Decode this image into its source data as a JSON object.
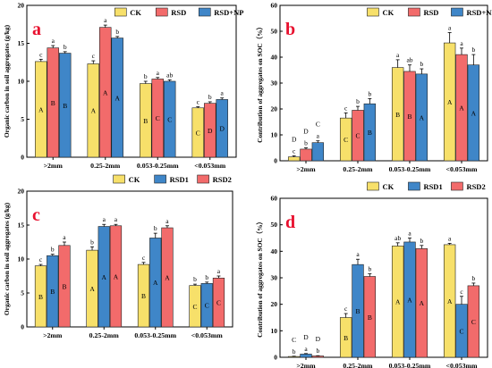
{
  "colors": {
    "yellow": "#f7e06a",
    "red": "#f26b6b",
    "blue": "#3f86c8"
  },
  "chart_data": [
    {
      "type": "bar",
      "panel_label": "a",
      "ylabel": "Organic carbon in soil aggregates (g/kg)",
      "ylim": [
        0,
        20
      ],
      "yticks": [
        "0",
        "5",
        "10",
        "15",
        "20"
      ],
      "categories": [
        ">2mm",
        "0.25-2mm",
        "0.053-0.25mm",
        "<0.053mm"
      ],
      "series": [
        {
          "name": "CK",
          "color": "#f7e06a",
          "values": [
            12.6,
            12.3,
            9.7,
            6.5
          ],
          "errors": [
            0.3,
            0.4,
            0.3,
            0.15
          ],
          "upper": [
            "c",
            "c",
            "b",
            "c"
          ],
          "lower": [
            "A",
            "A",
            "B",
            "C"
          ]
        },
        {
          "name": "RSD",
          "color": "#f26b6b",
          "values": [
            14.4,
            17.1,
            10.3,
            7.1
          ],
          "errors": [
            0.3,
            0.3,
            0.2,
            0.2
          ],
          "upper": [
            "a",
            "a",
            "a",
            "b"
          ],
          "lower": [
            "B",
            "A",
            "C",
            "D"
          ]
        },
        {
          "name": "RSD+NP",
          "color": "#3f86c8",
          "values": [
            13.7,
            15.7,
            10.0,
            7.6
          ],
          "errors": [
            0.2,
            0.2,
            0.2,
            0.2
          ],
          "upper": [
            "b",
            "b",
            "ab",
            "a"
          ],
          "lower": [
            "B",
            "A",
            "C",
            "D"
          ]
        }
      ]
    },
    {
      "type": "bar",
      "panel_label": "b",
      "ylabel": "Contribution of aggregates on SOC（%）",
      "ylim": [
        0,
        60
      ],
      "yticks": [
        "0",
        "10",
        "20",
        "30",
        "40",
        "50",
        "60"
      ],
      "categories": [
        ">2mm",
        "0.25-2mm",
        "0.053-0.25mm",
        "<0.053mm"
      ],
      "series": [
        {
          "name": "CK",
          "color": "#f7e06a",
          "values": [
            1.5,
            16.5,
            36.0,
            45.5
          ],
          "errors": [
            0.4,
            2.0,
            3.0,
            4.0
          ],
          "upper": [
            "c",
            "c",
            "a",
            "a"
          ],
          "lower": [
            "D",
            "C",
            "B",
            "A"
          ]
        },
        {
          "name": "RSD",
          "color": "#f26b6b",
          "values": [
            4.5,
            19.5,
            34.5,
            41.0
          ],
          "errors": [
            0.5,
            1.5,
            2.5,
            2.5
          ],
          "upper": [
            "b",
            "b",
            "ab",
            "a"
          ],
          "lower": [
            "D",
            "C",
            "B",
            "A"
          ]
        },
        {
          "name": "RSD+NP",
          "color": "#3f86c8",
          "values": [
            7.0,
            22.0,
            33.5,
            37.0
          ],
          "errors": [
            0.7,
            2.0,
            2.0,
            4.0
          ],
          "upper": [
            "a",
            "b",
            "b",
            "b"
          ],
          "lower": [
            "C",
            "B",
            "A",
            "A"
          ]
        }
      ]
    },
    {
      "type": "bar",
      "panel_label": "c",
      "ylabel": "Organic carbon in soil aggregates (g/kg)",
      "ylim": [
        0,
        20
      ],
      "yticks": [
        "0",
        "5",
        "10",
        "15",
        "20"
      ],
      "categories": [
        ">2mm",
        "0.25-2mm",
        "0.053-0.25mm",
        "<0.053mm"
      ],
      "series": [
        {
          "name": "CK",
          "color": "#f7e06a",
          "values": [
            9.0,
            11.3,
            9.2,
            6.1
          ],
          "errors": [
            0.2,
            0.5,
            0.3,
            0.2
          ],
          "upper": [
            "c",
            "b",
            "c",
            "b"
          ],
          "lower": [
            "B",
            "A",
            "B",
            "C"
          ]
        },
        {
          "name": "RSD1",
          "color": "#3f86c8",
          "values": [
            10.5,
            14.8,
            13.1,
            6.4
          ],
          "errors": [
            0.2,
            0.3,
            0.7,
            0.2
          ],
          "upper": [
            "b",
            "a",
            "b",
            "b"
          ],
          "lower": [
            "B",
            "A",
            "A",
            "C"
          ]
        },
        {
          "name": "RSD2",
          "color": "#f26b6b",
          "values": [
            12.0,
            14.9,
            14.6,
            7.2
          ],
          "errors": [
            0.5,
            0.2,
            0.3,
            0.3
          ],
          "upper": [
            "a",
            "a",
            "a",
            "a"
          ],
          "lower": [
            "B",
            "A",
            "A",
            "C"
          ]
        }
      ]
    },
    {
      "type": "bar",
      "panel_label": "d",
      "ylabel": "Contribution of aggregates on SOC（%）",
      "ylim": [
        0,
        60
      ],
      "yticks": [
        "0",
        "10",
        "20",
        "30",
        "40",
        "50",
        "60"
      ],
      "categories": [
        ">2mm",
        "0.25-2mm",
        "0.053-0.25mm",
        "<0.053mm"
      ],
      "series": [
        {
          "name": "CK",
          "color": "#f7e06a",
          "values": [
            0.3,
            15.0,
            42.0,
            42.5
          ],
          "errors": [
            0.1,
            1.5,
            1.2,
            0.5
          ],
          "upper": [
            "b",
            "c",
            "ab",
            "a"
          ],
          "lower": [
            "C",
            "B",
            "A",
            "A"
          ]
        },
        {
          "name": "RSD1",
          "color": "#3f86c8",
          "values": [
            1.2,
            35.0,
            43.5,
            20.0
          ],
          "errors": [
            0.2,
            2.0,
            1.5,
            3.0
          ],
          "upper": [
            "a",
            "a",
            "a",
            "c"
          ],
          "lower": [
            "D",
            "B",
            "A",
            "C"
          ]
        },
        {
          "name": "RSD2",
          "color": "#f26b6b",
          "values": [
            0.5,
            30.5,
            41.0,
            27.0
          ],
          "errors": [
            0.1,
            1.0,
            1.2,
            1.0
          ],
          "upper": [
            "b",
            "b",
            "b",
            "b"
          ],
          "lower": [
            "D",
            "B",
            "A",
            "C"
          ]
        }
      ]
    }
  ]
}
